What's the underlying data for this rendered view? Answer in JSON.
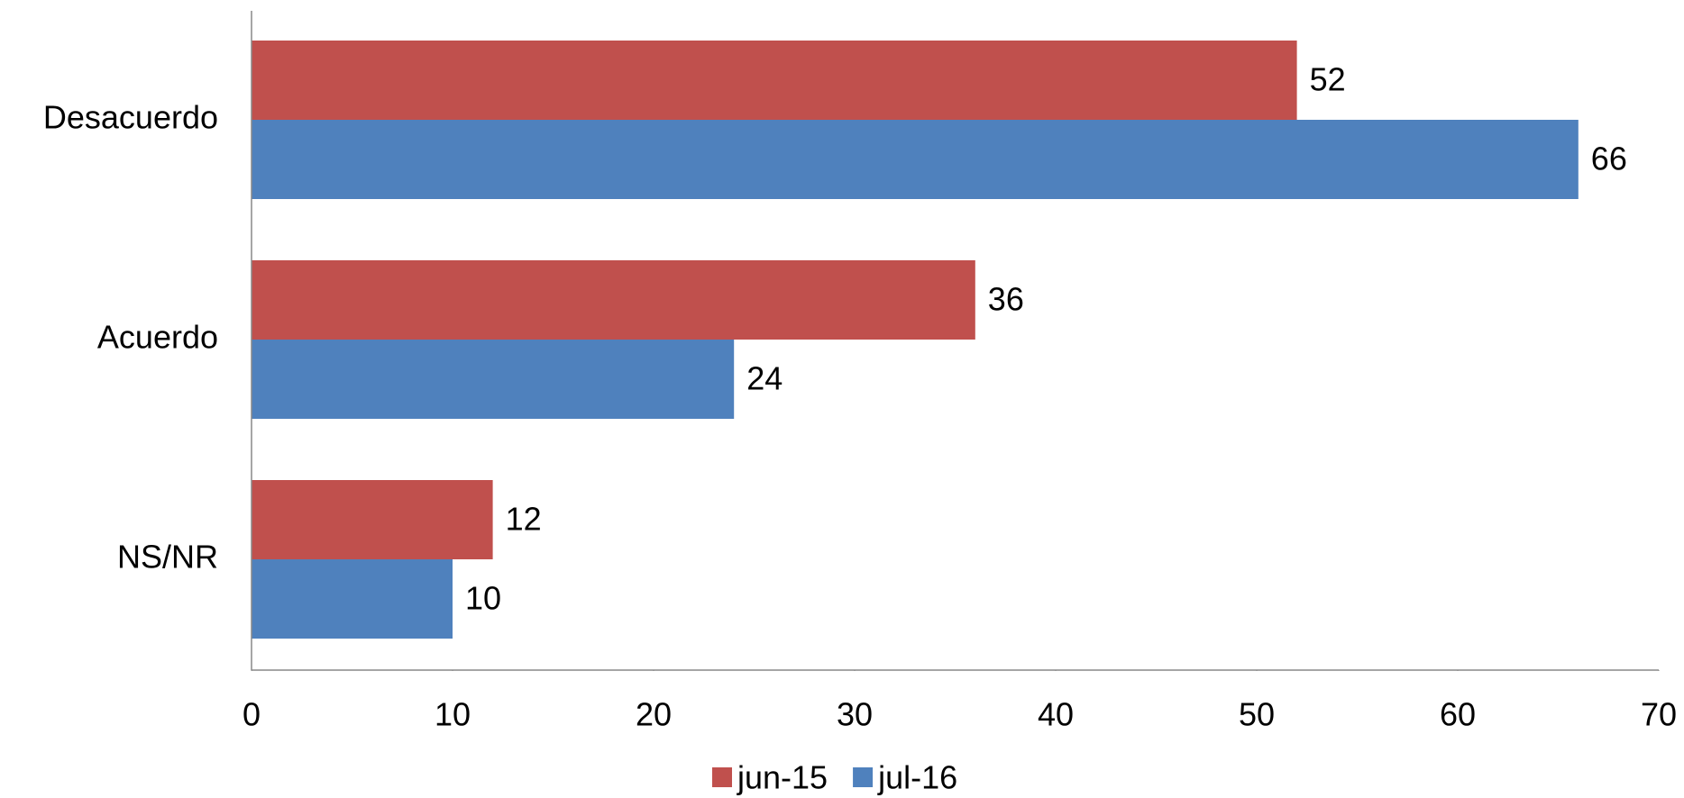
{
  "chart_data": {
    "type": "hbar",
    "categories": [
      "Desacuerdo",
      "Acuerdo",
      "NS/NR"
    ],
    "series": [
      {
        "name": "jun-15",
        "color": "#c0504d",
        "values": [
          52,
          36,
          12
        ]
      },
      {
        "name": "jul-16",
        "color": "#4f81bd",
        "values": [
          66,
          24,
          10
        ]
      }
    ],
    "xlim": [
      0,
      70
    ],
    "xticks": [
      0,
      10,
      20,
      30,
      40,
      50,
      60,
      70
    ],
    "grid": false,
    "legend": "bottom"
  }
}
